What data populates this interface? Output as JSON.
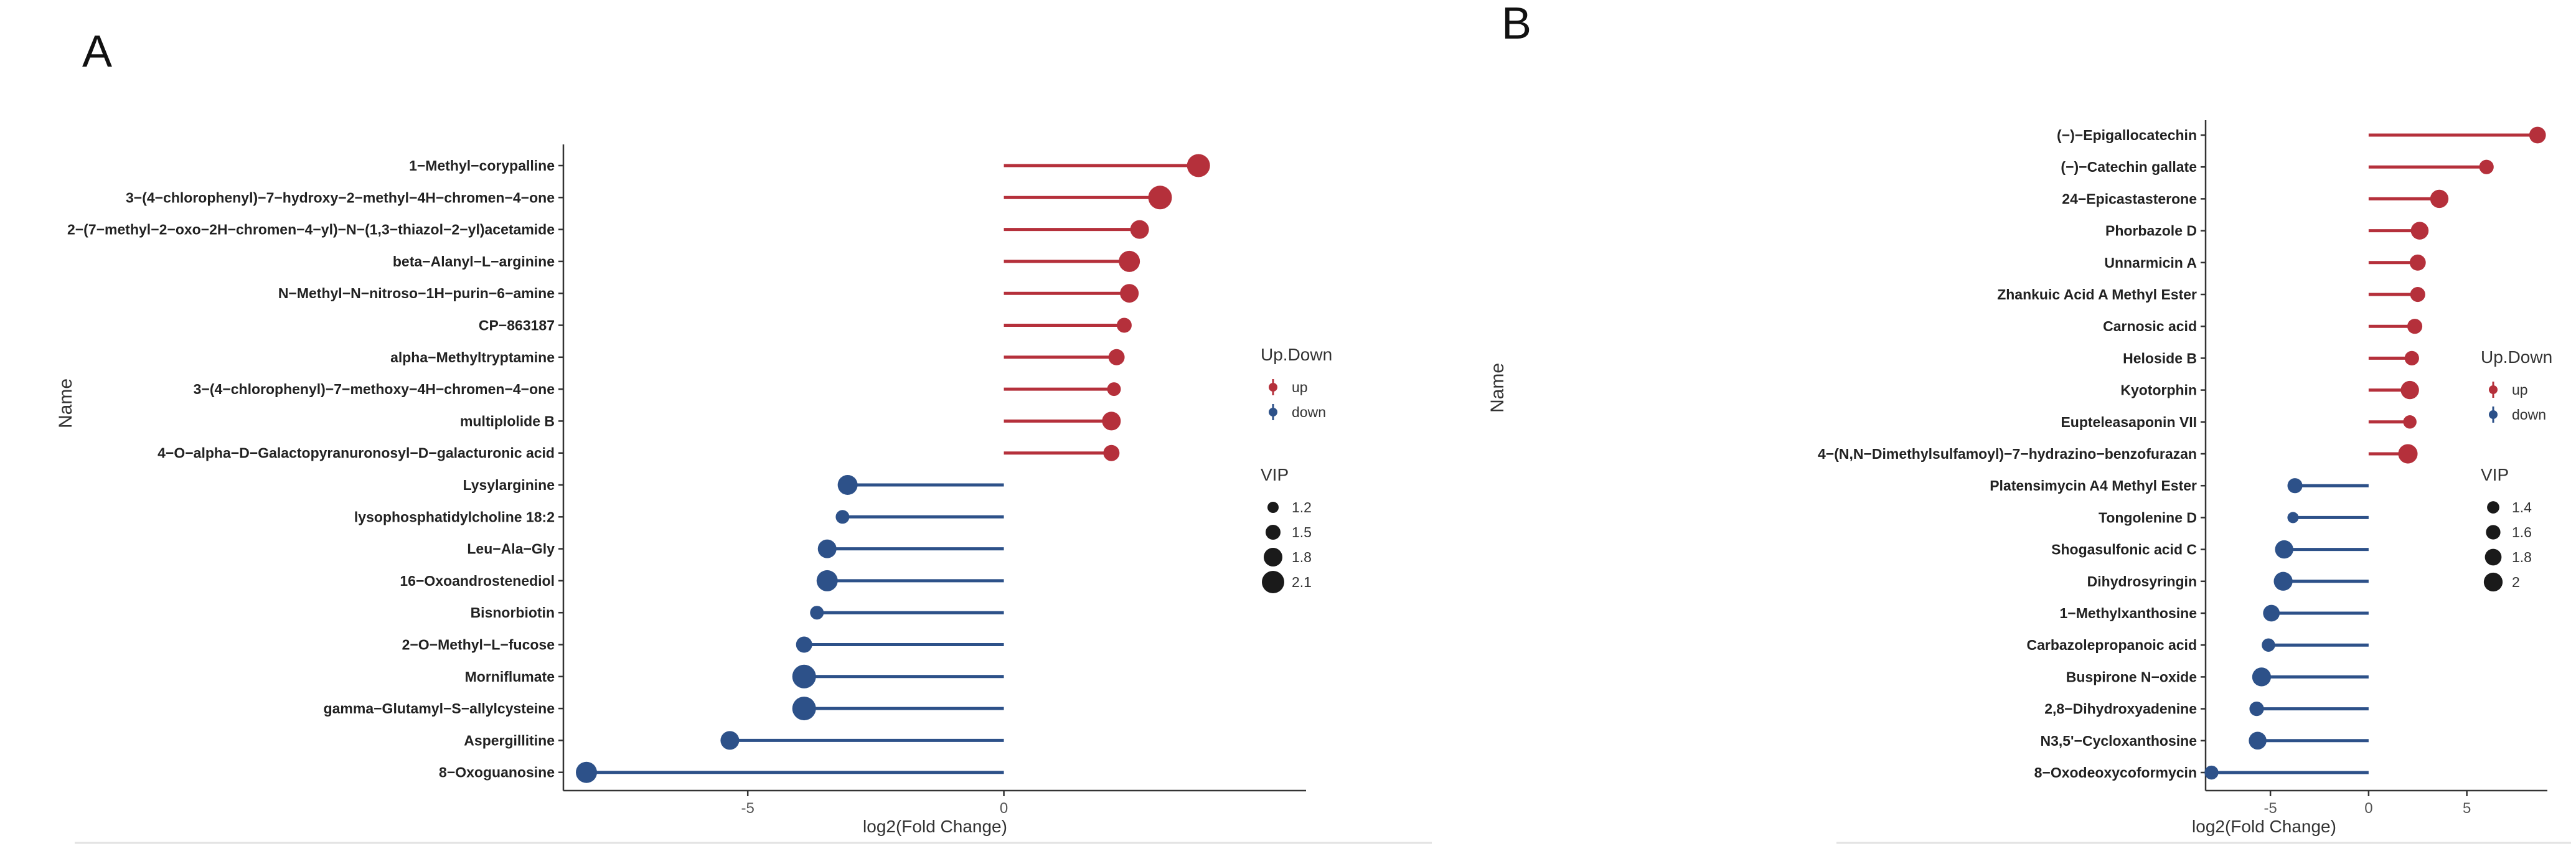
{
  "colors": {
    "up": "#b5303b",
    "down": "#2d5189",
    "axis": "#333333"
  },
  "chart_data": [
    {
      "type": "lollipop",
      "panel": "A",
      "xlabel": "log2(Fold Change)",
      "ylabel": "Name",
      "xlim": [
        -8.6,
        5.9
      ],
      "xticks": [
        -5,
        0
      ],
      "size_range": [
        1.1,
        2.2
      ],
      "legend": {
        "color_title": "Up.Down",
        "color_items": [
          "up",
          "down"
        ],
        "size_title": "VIP",
        "size_items": [
          1.2,
          1.5,
          1.8,
          2.1
        ]
      },
      "points": [
        {
          "name": "1−Methyl−corypalline",
          "fc": 3.8,
          "vip": 2.15,
          "group": "up"
        },
        {
          "name": "3−(4−chlorophenyl)−7−hydroxy−2−methyl−4H−chromen−4−one",
          "fc": 3.05,
          "vip": 2.2,
          "group": "up"
        },
        {
          "name": "2−(7−methyl−2−oxo−2H−chromen−4−yl)−N−(1,3−thiazol−2−yl)acetamide",
          "fc": 2.65,
          "vip": 1.8,
          "group": "up"
        },
        {
          "name": "beta−Alanyl−L−arginine",
          "fc": 2.45,
          "vip": 2.0,
          "group": "up"
        },
        {
          "name": "N−Methyl−N−nitroso−1H−purin−6−amine",
          "fc": 2.45,
          "vip": 1.8,
          "group": "up"
        },
        {
          "name": "CP−863187",
          "fc": 2.35,
          "vip": 1.5,
          "group": "up"
        },
        {
          "name": "alpha−Methyltryptamine",
          "fc": 2.2,
          "vip": 1.6,
          "group": "up"
        },
        {
          "name": "3−(4−chlorophenyl)−7−methoxy−4H−chromen−4−one",
          "fc": 2.15,
          "vip": 1.4,
          "group": "up"
        },
        {
          "name": "multiplolide B",
          "fc": 2.1,
          "vip": 1.8,
          "group": "up"
        },
        {
          "name": "4−O−alpha−D−Galactopyranuronosyl−D−galacturonic acid",
          "fc": 2.1,
          "vip": 1.6,
          "group": "up"
        },
        {
          "name": "Lysylarginine",
          "fc": -3.05,
          "vip": 1.9,
          "group": "down"
        },
        {
          "name": "lysophosphatidylcholine 18:2",
          "fc": -3.15,
          "vip": 1.4,
          "group": "down"
        },
        {
          "name": "Leu−Ala−Gly",
          "fc": -3.45,
          "vip": 1.8,
          "group": "down"
        },
        {
          "name": "16−Oxoandrostenediol",
          "fc": -3.45,
          "vip": 2.0,
          "group": "down"
        },
        {
          "name": "Bisnorbiotin",
          "fc": -3.65,
          "vip": 1.4,
          "group": "down"
        },
        {
          "name": "2−O−Methyl−L−fucose",
          "fc": -3.9,
          "vip": 1.6,
          "group": "down"
        },
        {
          "name": "Morniflumate",
          "fc": -3.9,
          "vip": 2.2,
          "group": "down"
        },
        {
          "name": "gamma−Glutamyl−S−allylcysteine",
          "fc": -3.9,
          "vip": 2.2,
          "group": "down"
        },
        {
          "name": "Aspergillitine",
          "fc": -5.35,
          "vip": 1.8,
          "group": "down"
        },
        {
          "name": "8−Oxoguanosine",
          "fc": -8.15,
          "vip": 2.0,
          "group": "down"
        }
      ]
    },
    {
      "type": "lollipop",
      "panel": "B",
      "xlabel": "log2(Fold Change)",
      "ylabel": "Name",
      "xlim": [
        -8.3,
        9.1
      ],
      "xticks": [
        -5,
        0,
        5
      ],
      "size_range": [
        1.3,
        2.1
      ],
      "legend": {
        "color_title": "Up.Down",
        "color_items": [
          "up",
          "down"
        ],
        "size_title": "VIP",
        "size_items": [
          1.4,
          1.6,
          1.8,
          2.0
        ]
      },
      "points": [
        {
          "name": "(−)−Epigallocatechin",
          "fc": 8.6,
          "vip": 1.8,
          "group": "up"
        },
        {
          "name": "(−)−Catechin gallate",
          "fc": 6.0,
          "vip": 1.6,
          "group": "up"
        },
        {
          "name": "24−Epicastasterone",
          "fc": 3.6,
          "vip": 1.95,
          "group": "up"
        },
        {
          "name": "Phorbazole D",
          "fc": 2.6,
          "vip": 1.9,
          "group": "up"
        },
        {
          "name": "Unnarmicin A",
          "fc": 2.5,
          "vip": 1.75,
          "group": "up"
        },
        {
          "name": "Zhankuic Acid A Methyl Ester",
          "fc": 2.5,
          "vip": 1.65,
          "group": "up"
        },
        {
          "name": "Carnosic acid",
          "fc": 2.35,
          "vip": 1.65,
          "group": "up"
        },
        {
          "name": "Heloside B",
          "fc": 2.2,
          "vip": 1.6,
          "group": "up"
        },
        {
          "name": "Kyotorphin",
          "fc": 2.1,
          "vip": 1.95,
          "group": "up"
        },
        {
          "name": "Eupteleasaponin VII",
          "fc": 2.1,
          "vip": 1.5,
          "group": "up"
        },
        {
          "name": "4−(N,N−Dimethylsulfamoyl)−7−hydrazino−benzofurazan",
          "fc": 2.0,
          "vip": 2.05,
          "group": "up"
        },
        {
          "name": "Platensimycin A4 Methyl Ester",
          "fc": -3.75,
          "vip": 1.65,
          "group": "down"
        },
        {
          "name": "Tongolenine D",
          "fc": -3.85,
          "vip": 1.3,
          "group": "down"
        },
        {
          "name": "Shogasulfonic acid C",
          "fc": -4.3,
          "vip": 1.95,
          "group": "down"
        },
        {
          "name": "Dihydrosyringin",
          "fc": -4.35,
          "vip": 2.0,
          "group": "down"
        },
        {
          "name": "1−Methylxanthosine",
          "fc": -4.95,
          "vip": 1.8,
          "group": "down"
        },
        {
          "name": "Carbazolepropanoic acid",
          "fc": -5.1,
          "vip": 1.5,
          "group": "down"
        },
        {
          "name": "Buspirone N−oxide",
          "fc": -5.45,
          "vip": 2.0,
          "group": "down"
        },
        {
          "name": "2,8−Dihydroxyadenine",
          "fc": -5.7,
          "vip": 1.6,
          "group": "down"
        },
        {
          "name": "N3,5'−Cycloxanthosine",
          "fc": -5.65,
          "vip": 1.9,
          "group": "down"
        },
        {
          "name": "8−Oxodeoxycoformycin",
          "fc": -8.0,
          "vip": 1.55,
          "group": "down"
        }
      ]
    }
  ]
}
